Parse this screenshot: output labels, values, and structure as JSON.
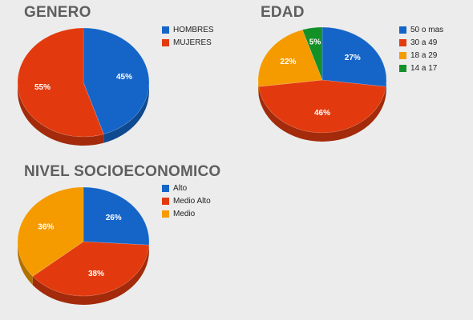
{
  "colors": {
    "blue": "#1565c8",
    "red": "#e23a0e",
    "orange": "#f59b00",
    "green": "#139127"
  },
  "chart_data": [
    {
      "type": "pie",
      "title": "GENERO",
      "legend_position": "right",
      "slices": [
        {
          "label": "HOMBRES",
          "value": 45,
          "display": "45%",
          "color": "#1565c8"
        },
        {
          "label": "MUJERES",
          "value": 55,
          "display": "55%",
          "color": "#e23a0e"
        }
      ]
    },
    {
      "type": "pie",
      "title": "EDAD",
      "legend_position": "right",
      "slices": [
        {
          "label": "50 o mas",
          "value": 27,
          "display": "27%",
          "color": "#1565c8"
        },
        {
          "label": "30 a 49",
          "value": 46,
          "display": "46%",
          "color": "#e23a0e"
        },
        {
          "label": "18 a 29",
          "value": 22,
          "display": "22%",
          "color": "#f59b00"
        },
        {
          "label": "14 a 17",
          "value": 5,
          "display": "5%",
          "color": "#139127"
        }
      ]
    },
    {
      "type": "pie",
      "title": "NIVEL SOCIOECONOMICO",
      "legend_position": "right",
      "slices": [
        {
          "label": "Alto",
          "value": 26,
          "display": "26%",
          "color": "#1565c8"
        },
        {
          "label": "Medio Alto",
          "value": 38,
          "display": "38%",
          "color": "#e23a0e"
        },
        {
          "label": "Medio",
          "value": 36,
          "display": "36%",
          "color": "#f59b00"
        }
      ]
    }
  ]
}
